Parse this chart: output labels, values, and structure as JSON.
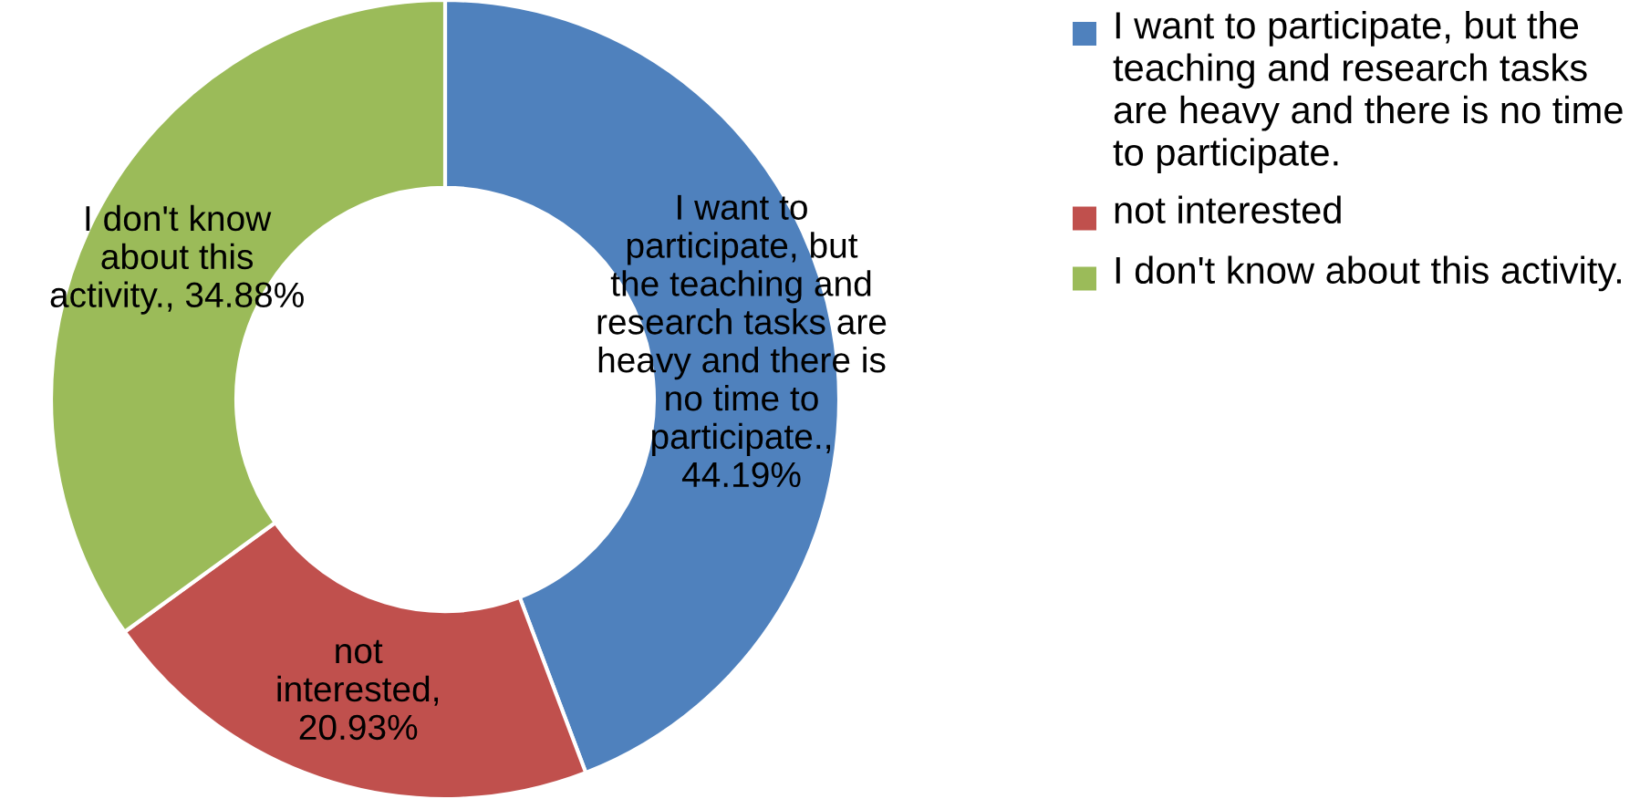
{
  "chart_data": {
    "type": "donut",
    "categories": [
      "I want to participate, but the teaching and research tasks are heavy and there is no time to participate.",
      "not interested",
      "I don't know about this activity."
    ],
    "values": [
      44.19,
      20.93,
      34.88
    ],
    "colors": [
      "#4f81bd",
      "#c0504d",
      "#9bbb59"
    ],
    "value_labels": [
      "I want to\nparticipate, but\nthe teaching and\nresearch tasks are\nheavy and there is\nno time to\nparticipate.,\n44.19%",
      "not\ninterested,\n20.93%",
      "I don't know\nabout this\nactivity., 34.88%"
    ],
    "legend": "right"
  }
}
